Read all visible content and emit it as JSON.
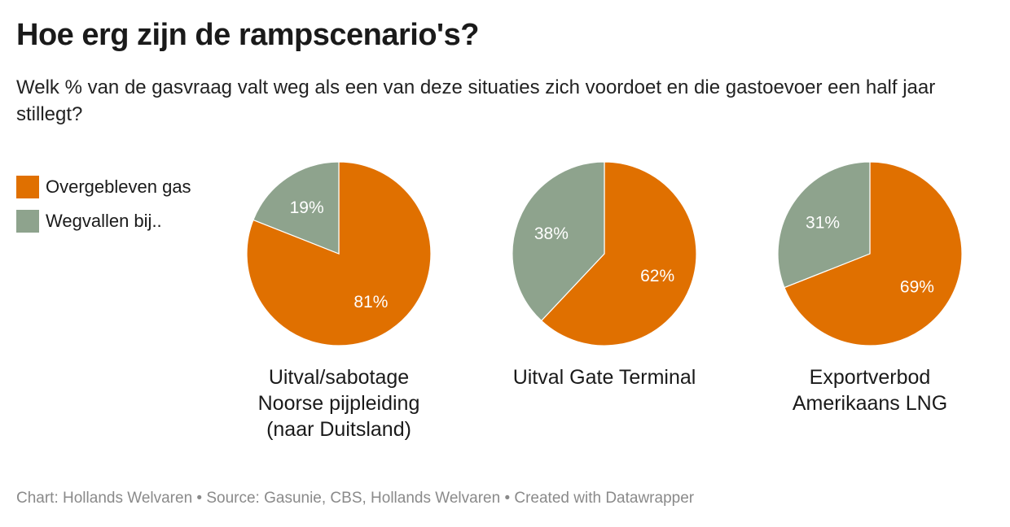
{
  "title": "Hoe erg zijn de rampscenario's?",
  "subtitle": "Welk % van de gasvraag valt weg als een van deze situaties zich voordoet en die gastoevoer een half jaar stillegt?",
  "footer": "Chart: Hollands Welvaren • Source: Gasunie, CBS, Hollands Welvaren • Created with Datawrapper",
  "chart_data": {
    "type": "pie",
    "legend_position": "left",
    "series": [
      {
        "name": "Overgebleven gas",
        "color": "#e07000"
      },
      {
        "name": "Wegvallen bij..",
        "color": "#8ea38d"
      }
    ],
    "charts": [
      {
        "label": [
          "Uitval/sabotage",
          "Noorse pijpleiding",
          "(naar Duitsland)"
        ],
        "values": [
          81,
          19
        ]
      },
      {
        "label": [
          "Uitval Gate Terminal"
        ],
        "values": [
          62,
          38
        ]
      },
      {
        "label": [
          "Exportverbod",
          "Amerikaans LNG"
        ],
        "values": [
          69,
          31
        ]
      }
    ]
  }
}
